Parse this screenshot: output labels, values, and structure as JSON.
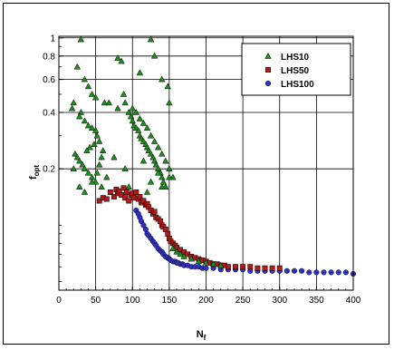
{
  "chart_data": {
    "type": "scatter",
    "xlabel_main": "N",
    "xlabel_sub": "f",
    "ylabel_main": "f",
    "ylabel_sub": "opt",
    "xlim": [
      0,
      400
    ],
    "ylim": [
      0.045,
      1.02
    ],
    "y_scale": "log",
    "x_ticks": [
      0,
      50,
      100,
      150,
      200,
      250,
      300,
      350,
      400
    ],
    "x_tick_labels": [
      "0",
      "50",
      "100",
      "150",
      "200",
      "250",
      "300",
      "350",
      "400"
    ],
    "y_ticks": [
      0.2,
      0.4,
      0.6,
      0.8,
      1
    ],
    "y_tick_labels": [
      "0.2",
      "0.4",
      "0.6",
      "0.8",
      "1"
    ],
    "grid": true,
    "legend_position": "top-right",
    "series": [
      {
        "name": "LHS10",
        "marker": "triangle",
        "color": "#1a8f1a",
        "x": [
          30,
          25,
          35,
          40,
          45,
          50,
          20,
          18,
          30,
          28,
          35,
          40,
          45,
          50,
          52,
          55,
          48,
          42,
          38,
          22,
          25,
          28,
          32,
          35,
          40,
          45,
          50,
          55,
          58,
          60,
          62,
          20,
          28,
          35,
          45,
          52,
          58,
          65,
          80,
          85,
          88,
          90,
          95,
          98,
          100,
          102,
          105,
          108,
          110,
          112,
          115,
          118,
          120,
          122,
          125,
          128,
          130,
          132,
          135,
          138,
          140,
          142,
          145,
          148,
          150,
          100,
          105,
          110,
          115,
          120,
          125,
          130,
          135,
          140,
          145,
          150,
          155,
          125,
          130,
          140,
          110,
          115,
          75,
          80,
          68,
          90,
          95,
          120,
          125,
          135,
          140,
          150,
          155,
          160,
          165,
          170,
          180,
          190,
          200,
          210,
          220
        ],
        "y": [
          0.98,
          0.7,
          0.6,
          0.55,
          0.5,
          0.48,
          0.45,
          0.42,
          0.4,
          0.38,
          0.36,
          0.34,
          0.33,
          0.32,
          0.3,
          0.28,
          0.27,
          0.26,
          0.25,
          0.24,
          0.23,
          0.22,
          0.21,
          0.2,
          0.19,
          0.18,
          0.17,
          0.21,
          0.23,
          0.25,
          0.45,
          0.2,
          0.16,
          0.15,
          0.17,
          0.19,
          0.16,
          0.18,
          0.78,
          0.75,
          0.5,
          0.45,
          0.4,
          0.38,
          0.36,
          0.34,
          0.33,
          0.32,
          0.3,
          0.29,
          0.28,
          0.27,
          0.26,
          0.25,
          0.24,
          0.23,
          0.22,
          0.21,
          0.2,
          0.19,
          0.18,
          0.17,
          0.16,
          0.55,
          0.45,
          0.42,
          0.4,
          0.37,
          0.35,
          0.33,
          0.3,
          0.28,
          0.26,
          0.24,
          0.22,
          0.2,
          0.18,
          0.98,
          0.8,
          0.6,
          0.65,
          0.22,
          0.23,
          0.42,
          0.45,
          0.2,
          0.16,
          0.15,
          0.17,
          0.19,
          0.16,
          0.18,
          0.075,
          0.072,
          0.07,
          0.068,
          0.066,
          0.064,
          0.063,
          0.062,
          0.061
        ]
      },
      {
        "name": "LHS50",
        "marker": "square",
        "color": "#b01c1c",
        "x": [
          55,
          60,
          65,
          70,
          75,
          78,
          80,
          82,
          85,
          88,
          90,
          92,
          95,
          98,
          100,
          102,
          105,
          108,
          110,
          112,
          115,
          118,
          120,
          122,
          125,
          128,
          130,
          132,
          135,
          138,
          140,
          142,
          145,
          148,
          150,
          152,
          155,
          158,
          160,
          165,
          170,
          175,
          180,
          185,
          190,
          195,
          200,
          205,
          210,
          215,
          220,
          225,
          230,
          240,
          250,
          260,
          270,
          280,
          290,
          300
        ],
        "y": [
          0.135,
          0.14,
          0.138,
          0.15,
          0.142,
          0.155,
          0.148,
          0.152,
          0.145,
          0.158,
          0.14,
          0.15,
          0.135,
          0.145,
          0.148,
          0.14,
          0.15,
          0.138,
          0.142,
          0.132,
          0.135,
          0.128,
          0.13,
          0.125,
          0.12,
          0.115,
          0.118,
          0.11,
          0.108,
          0.105,
          0.1,
          0.098,
          0.095,
          0.09,
          0.085,
          0.082,
          0.08,
          0.078,
          0.076,
          0.074,
          0.072,
          0.07,
          0.068,
          0.067,
          0.066,
          0.065,
          0.064,
          0.063,
          0.062,
          0.062,
          0.061,
          0.061,
          0.06,
          0.06,
          0.06,
          0.06,
          0.059,
          0.059,
          0.059,
          0.059
        ]
      },
      {
        "name": "LHS100",
        "marker": "circle",
        "color": "#3030c8",
        "x": [
          105,
          108,
          110,
          112,
          115,
          118,
          120,
          122,
          125,
          128,
          130,
          132,
          135,
          138,
          140,
          142,
          145,
          148,
          150,
          152,
          155,
          158,
          160,
          162,
          165,
          168,
          170,
          175,
          180,
          185,
          190,
          195,
          200,
          210,
          220,
          230,
          240,
          250,
          260,
          270,
          280,
          290,
          300,
          310,
          320,
          330,
          340,
          350,
          360,
          370,
          380,
          390,
          400
        ],
        "y": [
          0.12,
          0.115,
          0.11,
          0.105,
          0.1,
          0.095,
          0.09,
          0.088,
          0.085,
          0.082,
          0.08,
          0.078,
          0.075,
          0.073,
          0.072,
          0.07,
          0.068,
          0.067,
          0.066,
          0.065,
          0.064,
          0.064,
          0.063,
          0.063,
          0.062,
          0.062,
          0.061,
          0.061,
          0.06,
          0.06,
          0.06,
          0.059,
          0.059,
          0.059,
          0.058,
          0.058,
          0.058,
          0.058,
          0.057,
          0.057,
          0.057,
          0.057,
          0.057,
          0.057,
          0.057,
          0.057,
          0.056,
          0.056,
          0.056,
          0.056,
          0.056,
          0.056,
          0.055
        ]
      }
    ]
  }
}
